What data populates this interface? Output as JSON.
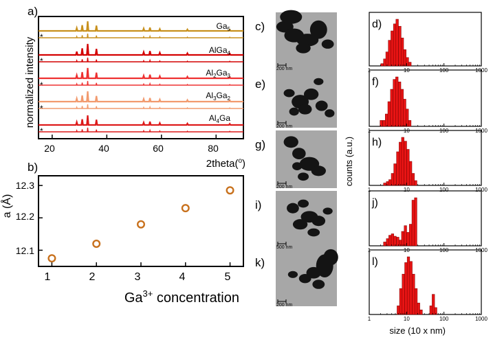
{
  "colors": {
    "xrd": [
      "#c8901c",
      "#d40000",
      "#ee3030",
      "#f29a6e",
      "#dd1a1a"
    ],
    "marker": "#c8711d",
    "bar_fill": "#e81414",
    "bar_stroke": "#7a0000",
    "tem_bg": "#a7a7a7"
  },
  "panel_labels": {
    "a": "a)",
    "b": "b)",
    "c": "c)",
    "d": "d)",
    "e": "e)",
    "f": "f)",
    "g": "g)",
    "h": "h)",
    "i": "i)",
    "j": "j)",
    "k": "k)",
    "l": "l)"
  },
  "xrd": {
    "ylabel": "normalized intensity",
    "xlabel": "2theta(o)",
    "xlabel_main": "2theta(",
    "xlabel_sup": "o",
    "xlabel_end": ")",
    "xticks": [
      "20",
      "40",
      "60",
      "80"
    ],
    "star": "*",
    "curves": [
      {
        "name_parts": [
          "Ga",
          "5"
        ]
      },
      {
        "name_parts": [
          "AlGa",
          "4"
        ]
      },
      {
        "name_parts": [
          "Al",
          "2",
          "Ga",
          "3"
        ]
      },
      {
        "name_parts": [
          "Al",
          "3",
          "Ga",
          "2"
        ]
      },
      {
        "name_parts": [
          "Al",
          "4",
          "Ga"
        ]
      }
    ],
    "peak_positions": [
      29.0,
      31.0,
      33.0,
      36.2,
      53.5,
      55.8,
      59.4,
      69.5,
      85.0
    ]
  },
  "lattice": {
    "ylabel": "a (Å)",
    "xlabel_main": "Ga",
    "xlabel_sup": "3+",
    "xlabel_end": " concentration",
    "xticks": [
      "1",
      "2",
      "3",
      "4",
      "5"
    ],
    "yticks": [
      "12.1",
      "12.2",
      "12.3"
    ]
  },
  "chart_data": [
    {
      "type": "line",
      "panel": "a)",
      "xlabel": "2theta(o)",
      "ylabel": "normalized intensity",
      "xlim": [
        15,
        90
      ],
      "series": [
        {
          "name": "Ga5",
          "peaks_x": [
            29.0,
            31.0,
            33.0,
            36.2,
            53.5,
            55.8,
            59.4,
            69.5,
            85.0
          ],
          "peaks_y": [
            0.3,
            0.6,
            1.0,
            0.55,
            0.25,
            0.35,
            0.2,
            0.15,
            0.12
          ]
        },
        {
          "name": "AlGa4",
          "peaks_x": [
            29.0,
            31.0,
            33.0,
            36.2,
            53.5,
            55.8,
            59.4,
            69.5,
            85.0
          ],
          "peaks_y": [
            0.3,
            0.6,
            1.0,
            0.55,
            0.25,
            0.35,
            0.2,
            0.15,
            0.12
          ]
        },
        {
          "name": "Al2Ga3",
          "peaks_x": [
            29.0,
            31.0,
            33.0,
            36.2,
            53.5,
            55.8,
            59.4,
            69.5,
            85.0
          ],
          "peaks_y": [
            0.3,
            0.6,
            1.0,
            0.55,
            0.25,
            0.35,
            0.2,
            0.15,
            0.12
          ]
        },
        {
          "name": "Al3Ga2",
          "peaks_x": [
            29.0,
            31.0,
            33.0,
            36.2,
            53.5,
            55.8,
            59.4,
            69.5,
            85.0
          ],
          "peaks_y": [
            0.3,
            0.6,
            1.0,
            0.55,
            0.25,
            0.35,
            0.2,
            0.15,
            0.12
          ]
        },
        {
          "name": "Al4Ga",
          "peaks_x": [
            29.0,
            31.0,
            33.0,
            36.2,
            53.5,
            55.8,
            59.4,
            69.5,
            85.0
          ],
          "peaks_y": [
            0.3,
            0.6,
            1.0,
            0.55,
            0.25,
            0.35,
            0.2,
            0.15,
            0.12
          ]
        }
      ]
    },
    {
      "type": "scatter",
      "panel": "b)",
      "xlabel": "Ga3+ concentration",
      "ylabel": "a (Å)",
      "xlim": [
        0.7,
        5.3
      ],
      "ylim": [
        12.05,
        12.33
      ],
      "x": [
        1,
        2,
        3,
        4,
        5
      ],
      "y": [
        12.075,
        12.12,
        12.18,
        12.23,
        12.285
      ]
    },
    {
      "type": "bar",
      "panel": "d)",
      "xscale": "log",
      "xlim": [
        1,
        1000
      ],
      "bins": [
        [
          2.2,
          0.05
        ],
        [
          2.6,
          0.15
        ],
        [
          3.0,
          0.3
        ],
        [
          3.5,
          0.55
        ],
        [
          4.1,
          0.75
        ],
        [
          4.8,
          0.9
        ],
        [
          5.6,
          1.0
        ],
        [
          6.6,
          0.85
        ],
        [
          7.7,
          0.6
        ],
        [
          9.0,
          0.35
        ],
        [
          10.5,
          0.18
        ],
        [
          12.3,
          0.08
        ]
      ]
    },
    {
      "type": "bar",
      "panel": "f)",
      "xscale": "log",
      "xlim": [
        1,
        1000
      ],
      "bins": [
        [
          2.1,
          0.12
        ],
        [
          2.5,
          0.12
        ],
        [
          2.9,
          0.25
        ],
        [
          3.4,
          0.5
        ],
        [
          4.0,
          0.75
        ],
        [
          4.7,
          0.95
        ],
        [
          5.5,
          1.0
        ],
        [
          6.5,
          0.9
        ],
        [
          7.6,
          0.75
        ],
        [
          8.9,
          0.55
        ],
        [
          10.4,
          0.35
        ],
        [
          12.2,
          0.12
        ]
      ]
    },
    {
      "type": "bar",
      "panel": "h)",
      "xscale": "log",
      "xlim": [
        1,
        1000
      ],
      "bins": [
        [
          2.6,
          0.05
        ],
        [
          3.1,
          0.08
        ],
        [
          3.6,
          0.12
        ],
        [
          4.2,
          0.25
        ],
        [
          4.9,
          0.45
        ],
        [
          5.8,
          0.7
        ],
        [
          6.8,
          0.9
        ],
        [
          7.9,
          1.0
        ],
        [
          9.3,
          0.92
        ],
        [
          10.9,
          0.75
        ],
        [
          12.8,
          0.5
        ],
        [
          15.0,
          0.25
        ],
        [
          17.5,
          0.1
        ]
      ]
    },
    {
      "type": "bar",
      "panel": "j)",
      "xscale": "log",
      "xlim": [
        1,
        1000
      ],
      "bins": [
        [
          2.6,
          0.08
        ],
        [
          3.1,
          0.15
        ],
        [
          3.6,
          0.22
        ],
        [
          4.2,
          0.25
        ],
        [
          4.9,
          0.2
        ],
        [
          5.8,
          0.18
        ],
        [
          6.8,
          0.12
        ],
        [
          7.9,
          0.3
        ],
        [
          9.3,
          0.42
        ],
        [
          10.9,
          0.28
        ],
        [
          12.8,
          0.45
        ],
        [
          15.0,
          0.95
        ],
        [
          17.5,
          1.0
        ]
      ]
    },
    {
      "type": "bar",
      "panel": "l)",
      "xscale": "log",
      "xlim": [
        1,
        1000
      ],
      "bins": [
        [
          6.0,
          0.15
        ],
        [
          7.0,
          0.45
        ],
        [
          8.2,
          0.7
        ],
        [
          9.6,
          0.9
        ],
        [
          11.2,
          1.0
        ],
        [
          13.1,
          0.92
        ],
        [
          15.3,
          0.7
        ],
        [
          17.9,
          0.45
        ],
        [
          20.9,
          0.2
        ],
        [
          24.5,
          0.08
        ],
        [
          45.0,
          0.15
        ],
        [
          52.0,
          0.35
        ],
        [
          60.0,
          0.12
        ]
      ]
    }
  ],
  "histograms": {
    "ylabel": "counts (a.u.)",
    "xlabel": "size (10 x nm)",
    "xticks": [
      "1",
      "10",
      "100",
      "1000"
    ],
    "panels": [
      "d)",
      "f)",
      "h)",
      "j)",
      "l)"
    ]
  },
  "tem": {
    "panels": [
      {
        "label": "c)",
        "scale": "200 nm"
      },
      {
        "label": "e)",
        "scale": "200 nm"
      },
      {
        "label": "g)",
        "scale": "200 nm"
      },
      {
        "label": "i)",
        "scale": "500 nm"
      },
      {
        "label": "k)",
        "scale": "200 nm"
      }
    ]
  }
}
